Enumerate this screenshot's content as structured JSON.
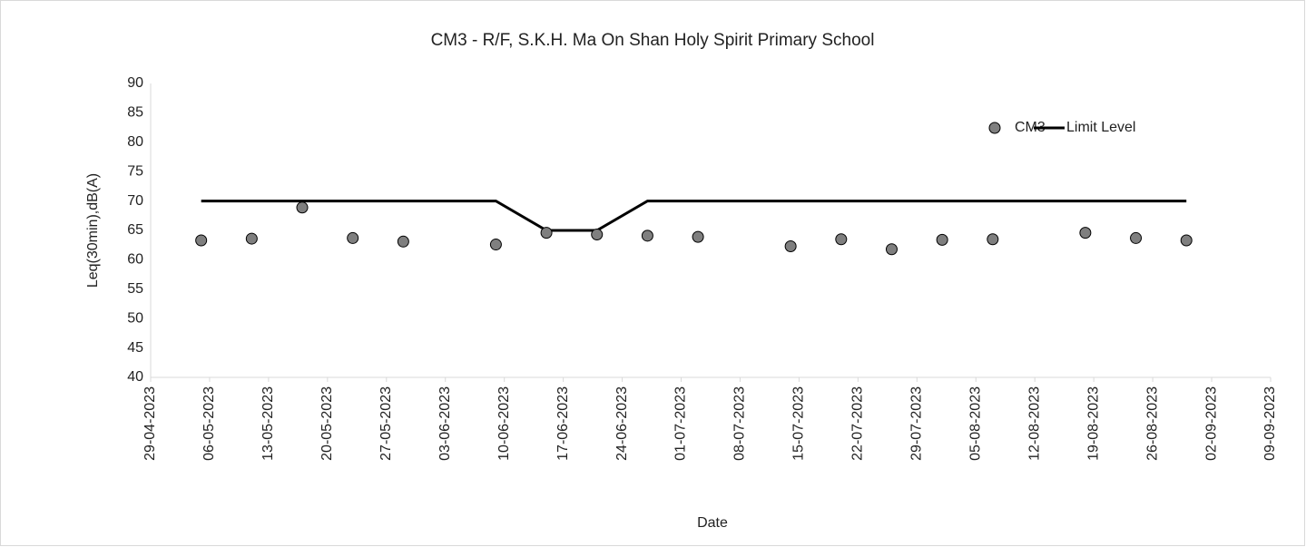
{
  "chart_data": {
    "type": "scatter",
    "title": "CM3 - R/F, S.K.H. Ma On Shan Holy Spirit Primary School",
    "x_label": "Date",
    "y_label": "Leq(30min),dB(A)",
    "x": [
      "05-05-2023",
      "11-05-2023",
      "17-05-2023",
      "23-05-2023",
      "29-05-2023",
      "09-06-2023",
      "15-06-2023",
      "21-06-2023",
      "27-06-2023",
      "03-07-2023",
      "14-07-2023",
      "20-07-2023",
      "26-07-2023",
      "01-08-2023",
      "07-08-2023",
      "18-08-2023",
      "24-08-2023",
      "30-08-2023"
    ],
    "series": [
      {
        "name": "CM3",
        "kind": "marker",
        "color": "#7f7f7f",
        "values": [
          63.3,
          63.6,
          68.9,
          63.7,
          63.1,
          62.6,
          64.6,
          64.3,
          64.1,
          63.9,
          62.3,
          63.5,
          61.8,
          63.4,
          63.5,
          64.6,
          63.7,
          63.3
        ]
      },
      {
        "name": "Limit Level",
        "kind": "line",
        "color": "#000000",
        "values": [
          70,
          70,
          70,
          70,
          70,
          70,
          65,
          65,
          70,
          70,
          70,
          70,
          70,
          70,
          70,
          70,
          70,
          70
        ]
      }
    ],
    "xlim": [
      "29-04-2023",
      "09-09-2023"
    ],
    "xticks": [
      "29-04-2023",
      "06-05-2023",
      "13-05-2023",
      "20-05-2023",
      "27-05-2023",
      "03-06-2023",
      "10-06-2023",
      "17-06-2023",
      "24-06-2023",
      "01-07-2023",
      "08-07-2023",
      "15-07-2023",
      "22-07-2023",
      "29-07-2023",
      "05-08-2023",
      "12-08-2023",
      "19-08-2023",
      "26-08-2023",
      "02-09-2023",
      "09-09-2023"
    ],
    "ylim": [
      40,
      90
    ],
    "yticks": [
      40,
      45,
      50,
      55,
      60,
      65,
      70,
      75,
      80,
      85,
      90
    ],
    "legend": "top-right",
    "grid": false
  }
}
